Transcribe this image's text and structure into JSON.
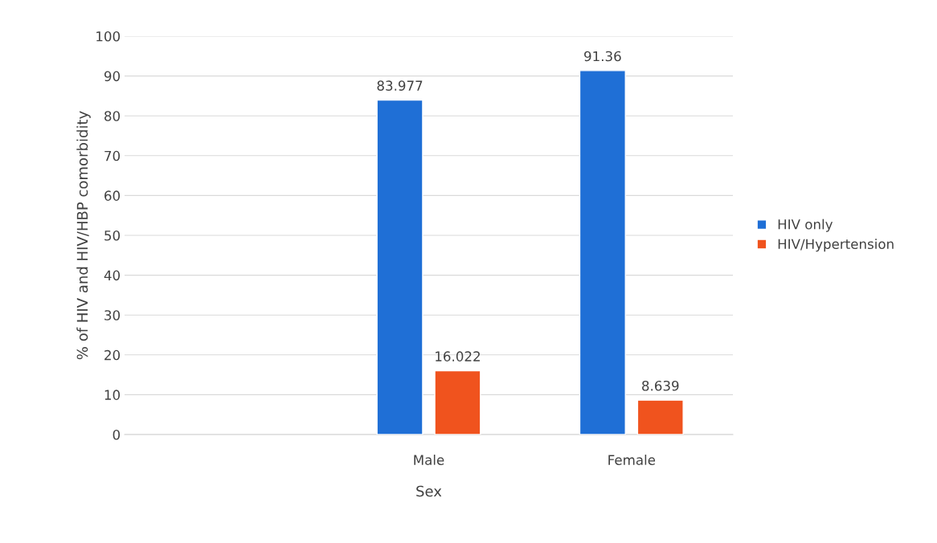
{
  "chart_data": {
    "type": "bar",
    "xlabel": "Sex",
    "ylabel": "% of HIV and HIV/HBP comorbidity",
    "categories": [
      null,
      "Male",
      "Female"
    ],
    "series": [
      {
        "name": "HIV only",
        "color": "#1f6fd6",
        "values": [
          null,
          83.977,
          91.36
        ]
      },
      {
        "name": "HIV/Hypertension",
        "color": "#f0531e",
        "values": [
          null,
          16.022,
          8.639
        ]
      }
    ],
    "ylim": [
      0,
      100
    ],
    "yticks": [
      0,
      10,
      20,
      30,
      40,
      50,
      60,
      70,
      80,
      90,
      100
    ],
    "grid": "y",
    "legend": "right",
    "data_labels": true
  }
}
